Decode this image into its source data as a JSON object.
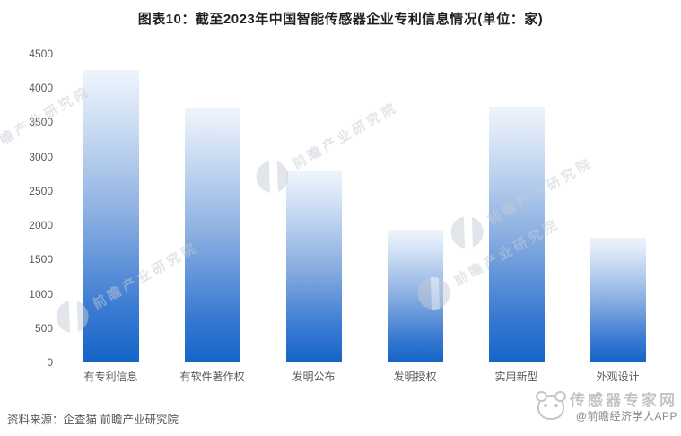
{
  "title": "图表10：截至2023年中国智能传感器企业专利信息情况(单位：家)",
  "source_note": "资料来源：企查猫 前瞻产业研究院",
  "watermark": {
    "text": "前瞻产业研究院"
  },
  "brand": {
    "name": "传感器专家网",
    "credit": "@前瞻经济学人APP"
  },
  "chart_data": {
    "type": "bar",
    "title": "图表10：截至2023年中国智能传感器企业专利信息情况",
    "unit": "家",
    "categories": [
      "有专利信息",
      "有软件著作权",
      "发明公布",
      "发明授权",
      "实用新型",
      "外观设计"
    ],
    "values": [
      4250,
      3700,
      2770,
      1920,
      3720,
      1810
    ],
    "xlabel": "",
    "ylabel": "",
    "ylim": [
      0,
      4500
    ],
    "ytick_step": 500,
    "grid": false,
    "legend": null,
    "bar_color_top": "#eff4fc",
    "bar_color_bottom": "#1565c8",
    "axis_color": "#d6d6d6",
    "label_color": "#595959"
  }
}
